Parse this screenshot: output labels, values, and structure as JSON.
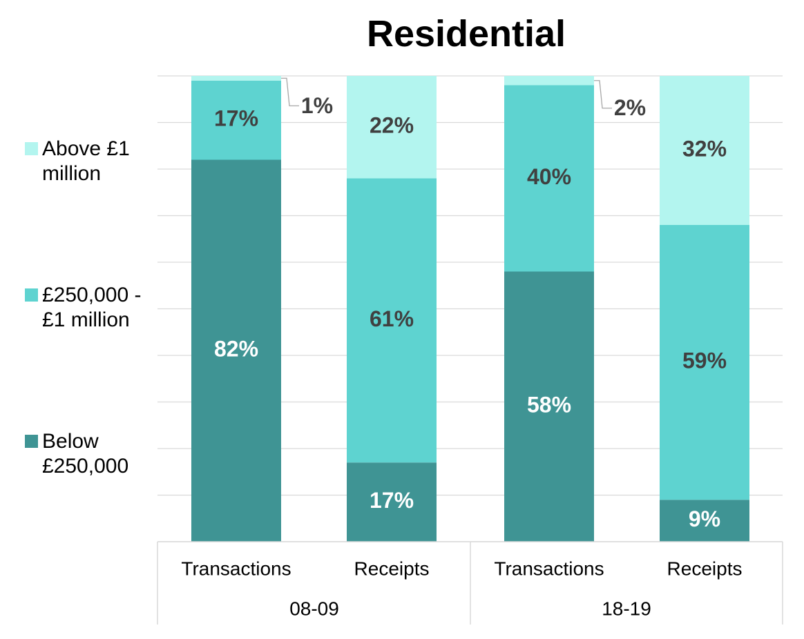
{
  "chart_data": {
    "type": "bar",
    "stacked": true,
    "title": "Residential",
    "xlabel": "",
    "ylabel": "",
    "ylim": [
      0,
      100
    ],
    "grid": true,
    "legend_position": "left",
    "categories": [
      "Transactions",
      "Receipts",
      "Transactions",
      "Receipts"
    ],
    "groups": [
      {
        "label": "08-09",
        "categories": [
          "Transactions",
          "Receipts"
        ]
      },
      {
        "label": "18-19",
        "categories": [
          "Transactions",
          "Receipts"
        ]
      }
    ],
    "series": [
      {
        "name": "Below £250,000",
        "color": "#3F9494",
        "label_color": "#FFFFFF",
        "values": [
          82,
          17,
          58,
          9
        ],
        "labels": [
          "82%",
          "17%",
          "58%",
          "9%"
        ]
      },
      {
        "name": "£250,000 - £1 million",
        "color": "#5ED3D0",
        "label_color": "#404040",
        "values": [
          17,
          61,
          40,
          59
        ],
        "labels": [
          "17%",
          "61%",
          "40%",
          "59%"
        ]
      },
      {
        "name": "Above £1 million",
        "color": "#B3F5EF",
        "label_color": "#404040",
        "values": [
          1,
          22,
          2,
          32
        ],
        "labels": [
          "1%",
          "22%",
          "2%",
          "32%"
        ]
      }
    ]
  }
}
